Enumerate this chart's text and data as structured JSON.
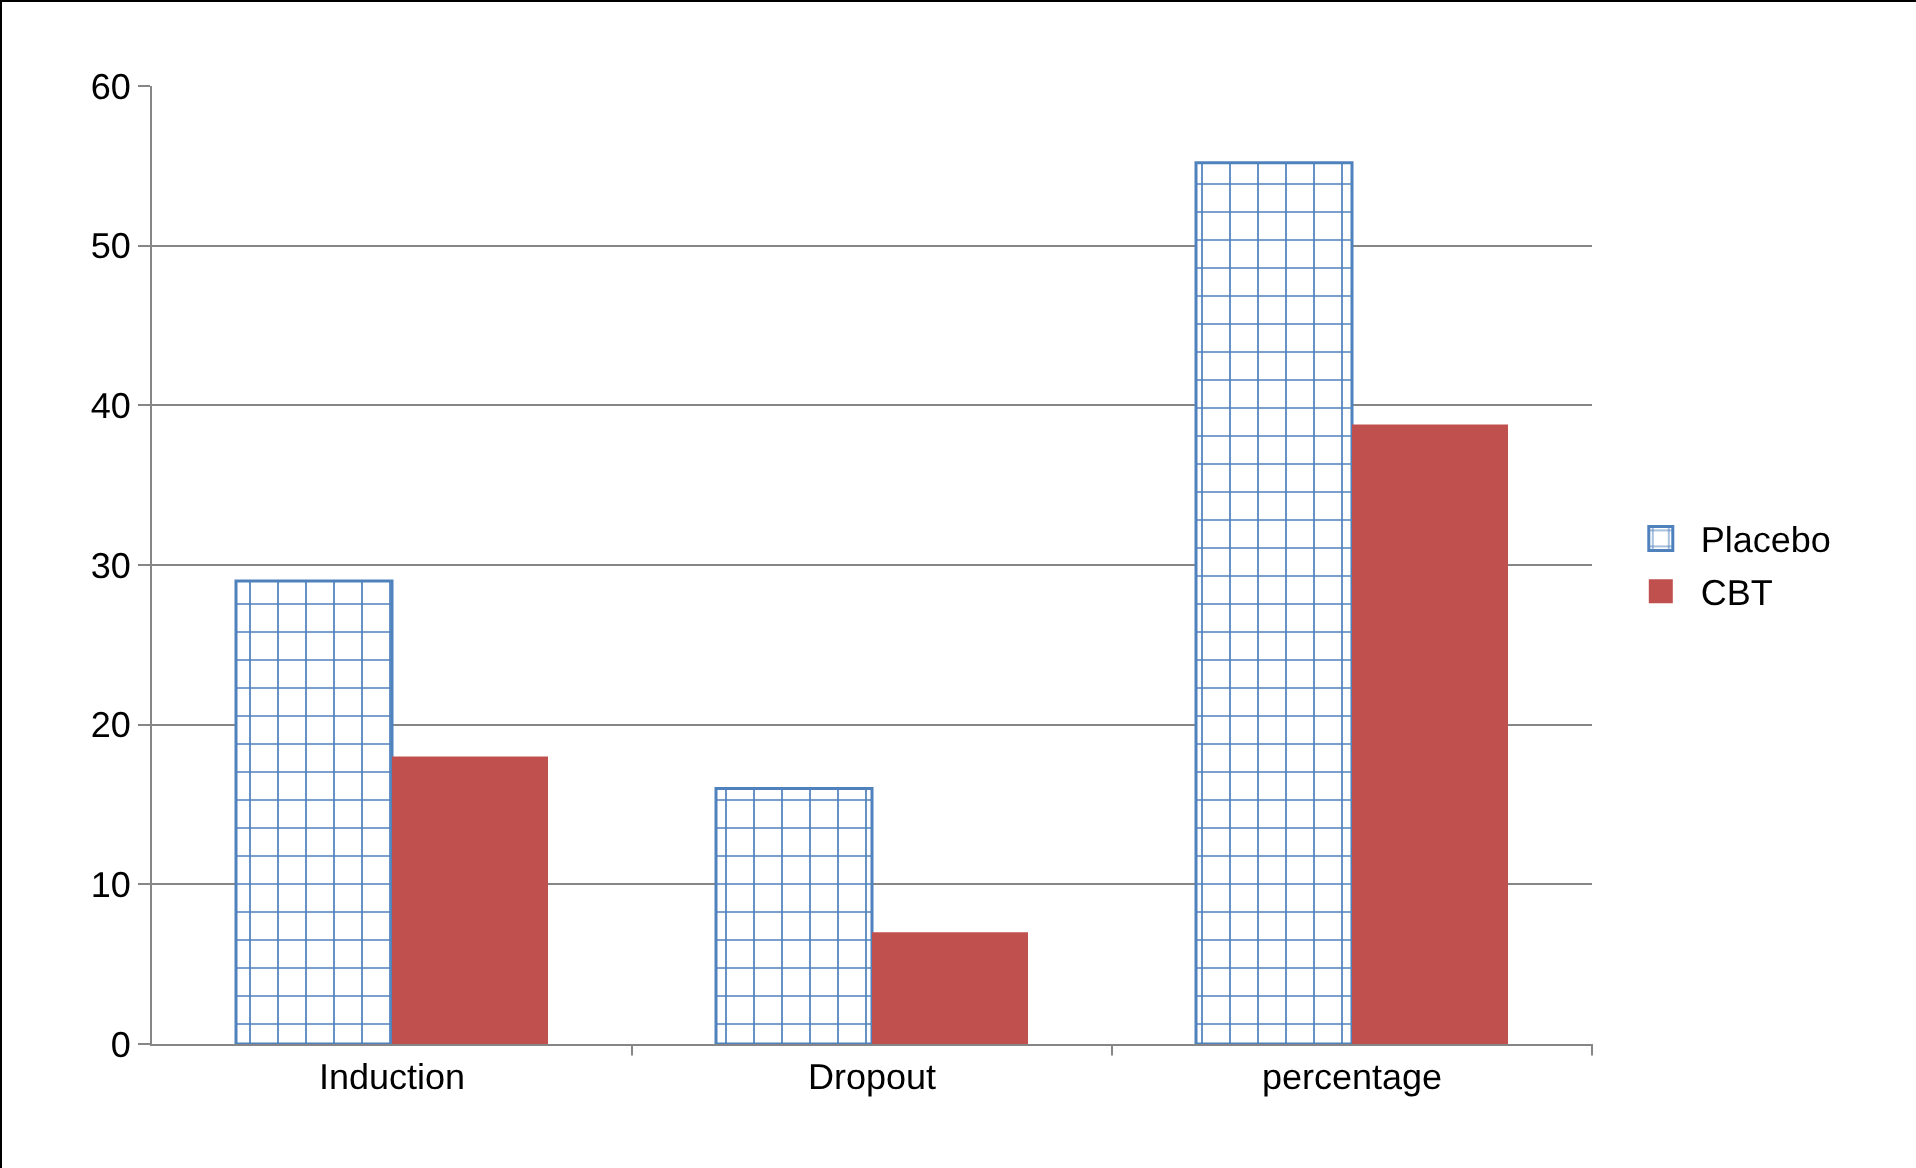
{
  "chart_data": {
    "type": "bar",
    "categories": [
      "Induction",
      "Dropout",
      "percentage"
    ],
    "series": [
      {
        "name": "Placebo",
        "color": "#4f81bd",
        "values": [
          29,
          16,
          55.2
        ]
      },
      {
        "name": "CBT",
        "color": "#c0504d",
        "values": [
          18,
          7,
          38.8
        ]
      }
    ],
    "ylim": [
      0,
      60
    ],
    "yticks": [
      0,
      10,
      20,
      30,
      40,
      50,
      60
    ],
    "grid": "y",
    "legend": "right"
  }
}
